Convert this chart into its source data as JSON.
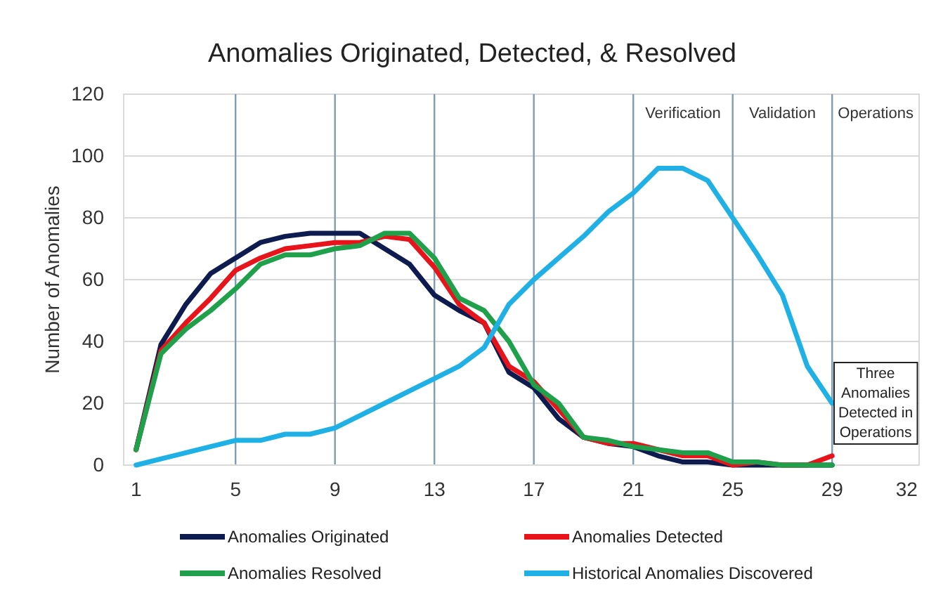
{
  "chart_data": {
    "type": "line",
    "title": "Anomalies  Originated, Detected, & Resolved",
    "ylabel": "Number of Anomalies",
    "x": [
      1,
      2,
      3,
      4,
      5,
      6,
      7,
      8,
      9,
      10,
      11,
      12,
      13,
      14,
      15,
      16,
      17,
      18,
      19,
      20,
      21,
      22,
      23,
      24,
      25,
      26,
      27,
      28,
      29
    ],
    "xlim": [
      0.5,
      32.5
    ],
    "xticks": [
      1,
      5,
      9,
      13,
      17,
      21,
      25,
      29,
      32
    ],
    "ylim": [
      0,
      120
    ],
    "yticks": [
      0,
      20,
      40,
      60,
      80,
      100,
      120
    ],
    "grid": "y",
    "legend": "bottom",
    "series": [
      {
        "name": "Anomalies Originated",
        "color": "#0d1b4f",
        "values": [
          5,
          39,
          52,
          62,
          67,
          72,
          74,
          75,
          75,
          75,
          70,
          65,
          55,
          50,
          46,
          30,
          25,
          15,
          9,
          7,
          6,
          3,
          1,
          1,
          0,
          0,
          0,
          0,
          0
        ]
      },
      {
        "name": "Anomalies Detected",
        "color": "#e8141b",
        "values": [
          5,
          37,
          46,
          54,
          63,
          67,
          70,
          71,
          72,
          72,
          74,
          73,
          64,
          52,
          46,
          32,
          27,
          18,
          9,
          7,
          7,
          5,
          3,
          3,
          0,
          1,
          0,
          0,
          3
        ]
      },
      {
        "name": "Anomalies Resolved",
        "color": "#1fa04a",
        "values": [
          5,
          36,
          44,
          50,
          57,
          65,
          68,
          68,
          70,
          71,
          75,
          75,
          67,
          54,
          50,
          40,
          26,
          20,
          9,
          8,
          6,
          5,
          4,
          4,
          1,
          1,
          0,
          0,
          0
        ]
      },
      {
        "name": "Historical Anomalies Discovered",
        "color": "#1fb0e6",
        "values": [
          0,
          2,
          4,
          6,
          8,
          8,
          10,
          10,
          12,
          16,
          20,
          24,
          28,
          32,
          38,
          52,
          60,
          67,
          74,
          82,
          88,
          96,
          96,
          92,
          80,
          68,
          55,
          32,
          20
        ]
      }
    ],
    "ref_lines": [
      {
        "axis": "x",
        "value": 5,
        "color": "#7f9cb8"
      },
      {
        "axis": "x",
        "value": 9,
        "color": "#7f9cb8"
      },
      {
        "axis": "x",
        "value": 13,
        "color": "#7f9cb8"
      },
      {
        "axis": "x",
        "value": 17,
        "color": "#7f9cb8"
      },
      {
        "axis": "x",
        "value": 21,
        "color": "#7f9cb8"
      },
      {
        "axis": "x",
        "value": 25,
        "color": "#7f9cb8"
      },
      {
        "axis": "x",
        "value": 29,
        "color": "#7f9cb8"
      }
    ],
    "annotations": [
      "Verification",
      "Validation",
      "Operations",
      "Three Anomalies Detected in Operations"
    ]
  }
}
